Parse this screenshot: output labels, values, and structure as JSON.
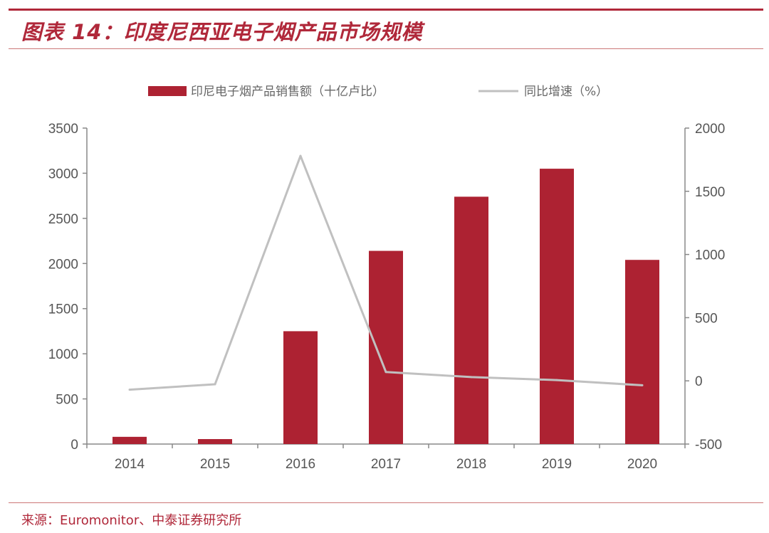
{
  "header": {
    "title": "图表 14：印度尼西亚电子烟产品市场规模"
  },
  "footer": {
    "source": "来源：Euromonitor、中泰证券研究所"
  },
  "colors": {
    "accent": "#b0283a",
    "bar": "#ad2232",
    "line": "#c0c0c0",
    "axis": "#888888"
  },
  "chart_data": {
    "type": "bar",
    "categories": [
      "2014",
      "2015",
      "2016",
      "2017",
      "2018",
      "2019",
      "2020"
    ],
    "series": [
      {
        "name": "印尼电子烟产品销售额（十亿卢比）",
        "type": "bar",
        "axis": "left",
        "values": [
          80,
          55,
          1250,
          2140,
          2740,
          3050,
          2040
        ]
      },
      {
        "name": "同比增速（%）",
        "type": "line",
        "axis": "right",
        "values": [
          -70,
          -27,
          1780,
          70,
          30,
          6,
          -35
        ]
      }
    ],
    "left_axis": {
      "ylim": [
        0,
        3500
      ],
      "ticks": [
        "0",
        "500",
        "1000",
        "1500",
        "2000",
        "2500",
        "3000",
        "3500"
      ]
    },
    "right_axis": {
      "ylim": [
        -500,
        2000
      ],
      "ticks": [
        "-500",
        "0",
        "500",
        "1000",
        "1500",
        "2000"
      ]
    },
    "legend": {
      "placement": "top-center"
    },
    "grid": false
  }
}
